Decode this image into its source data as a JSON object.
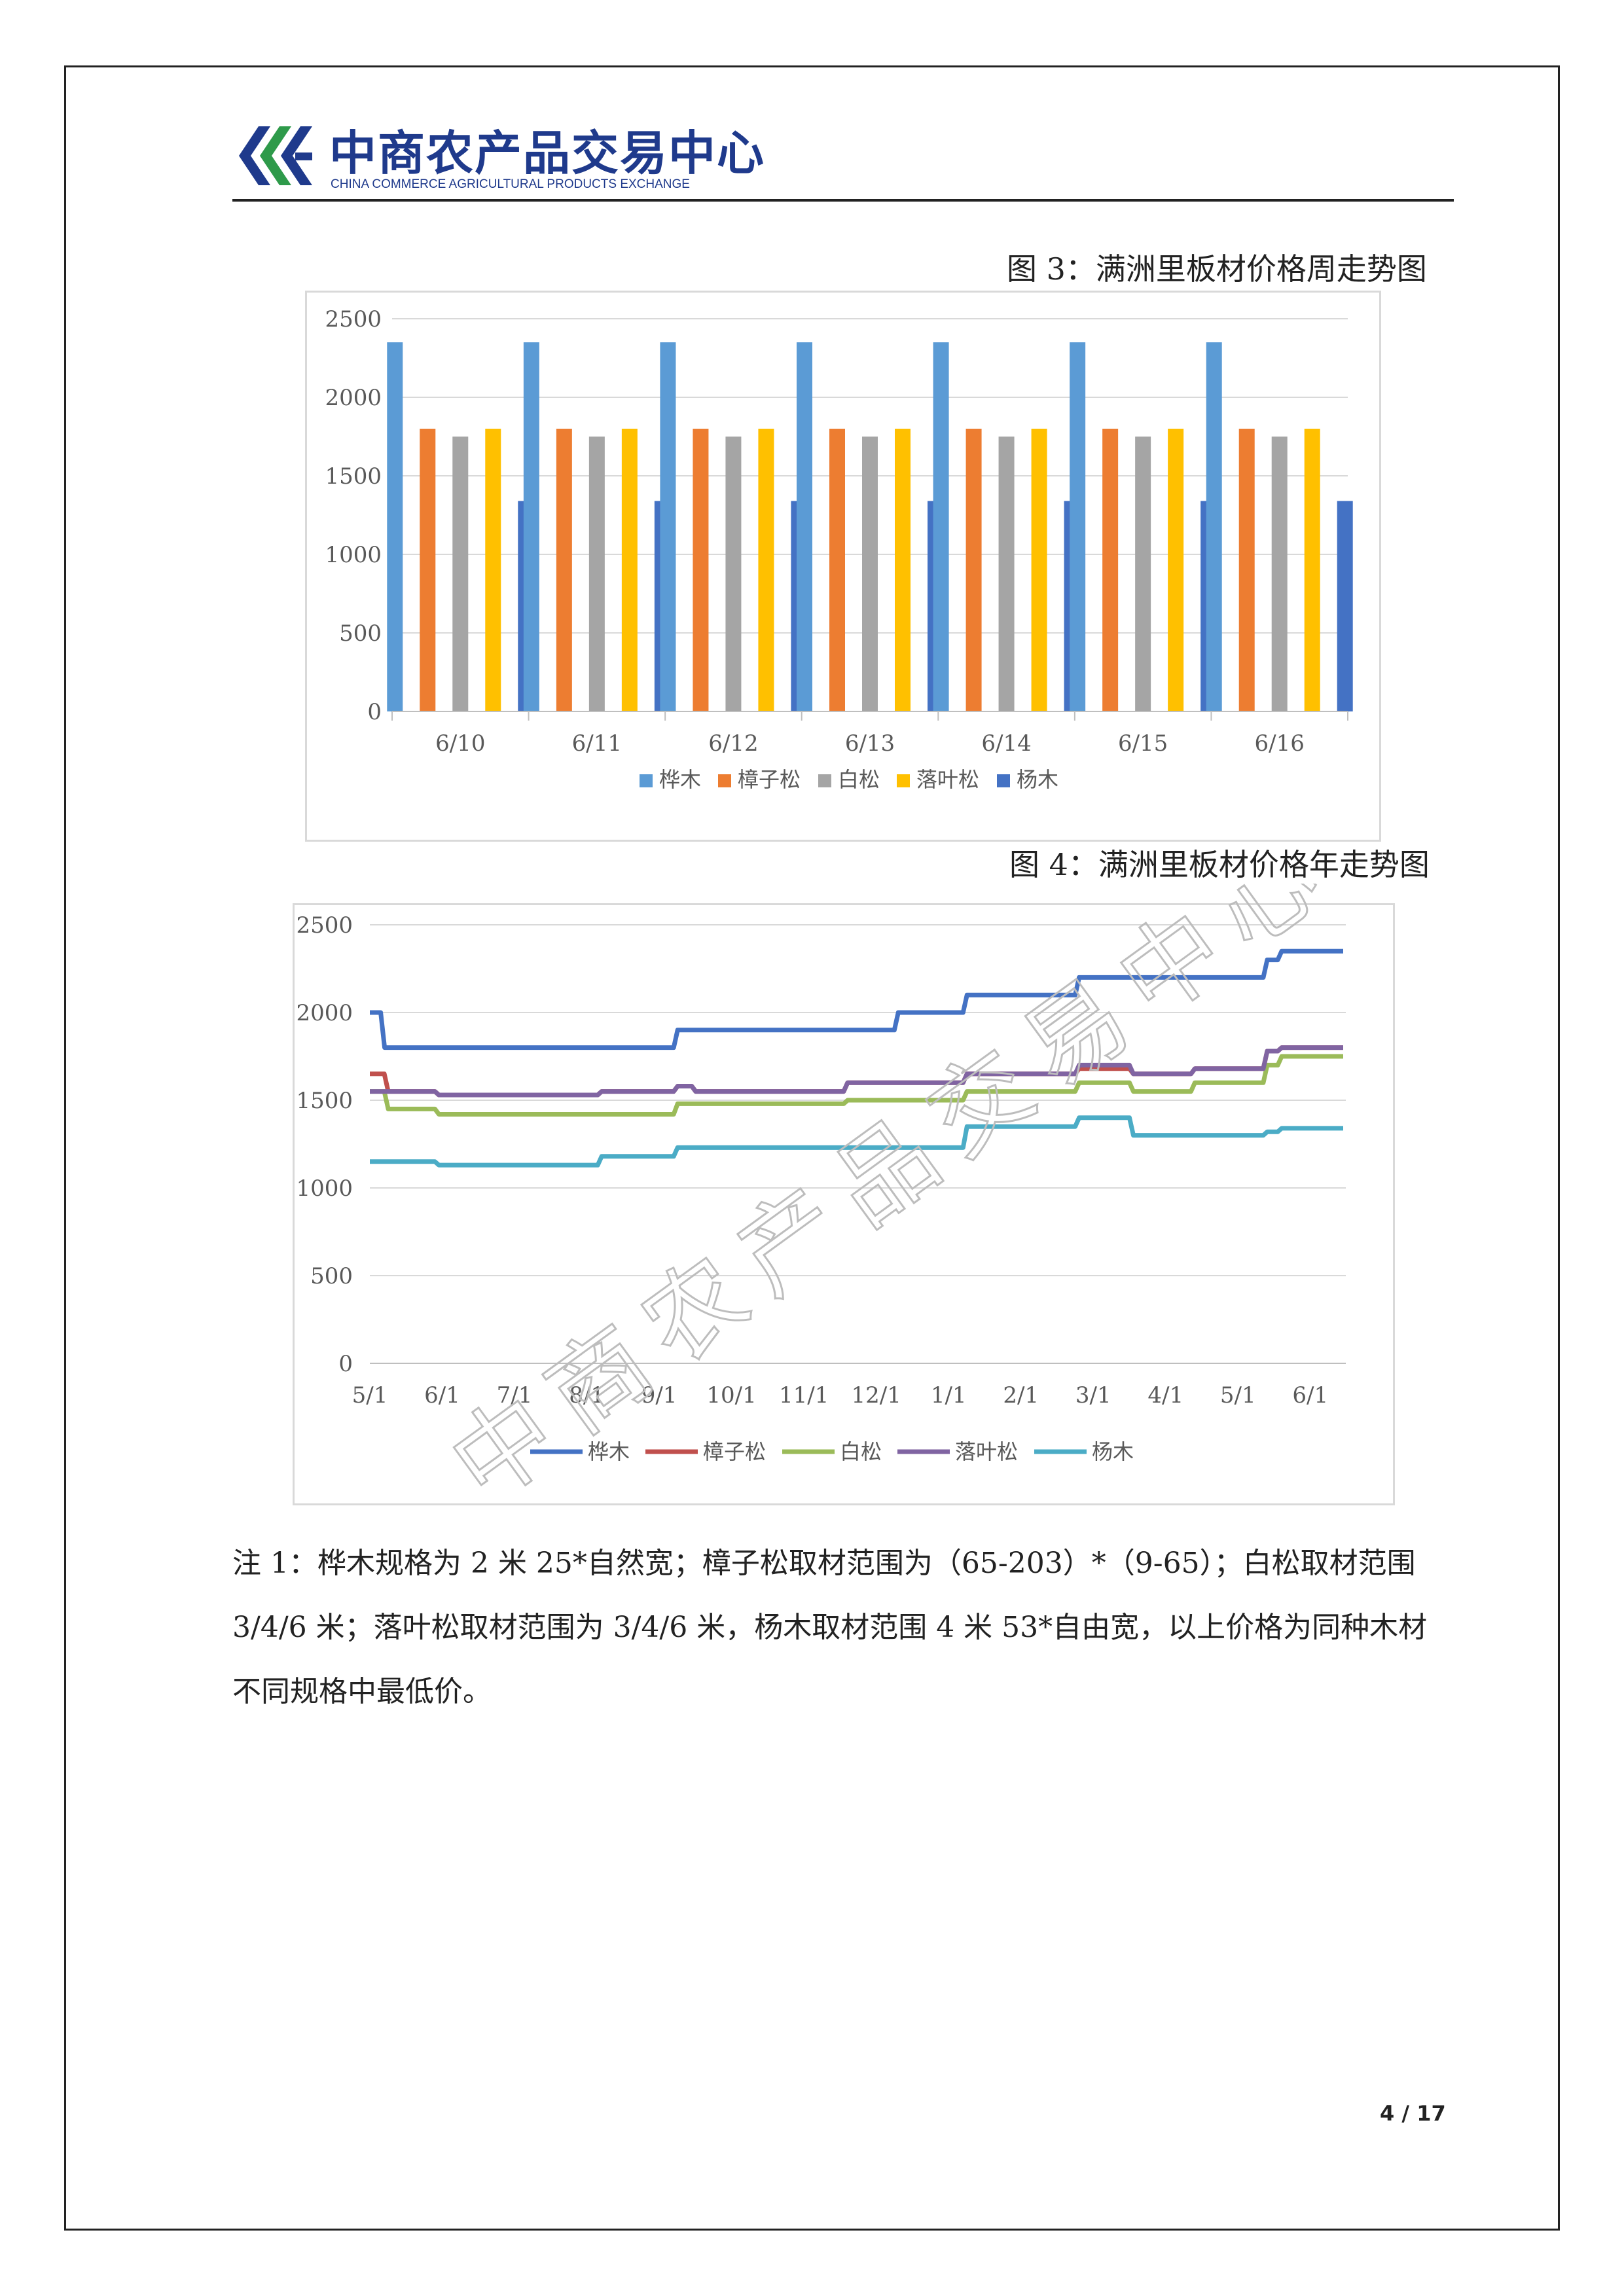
{
  "header": {
    "logo_text": "中商农产品交易中心",
    "logo_subtext": "CHINA COMMERCE AGRICULTURAL PRODUCTS EXCHANGE",
    "logo_icon": "cca-logo-icon",
    "brand_color": "#1f3a8c"
  },
  "figure3": {
    "title": "图 3：满洲里板材价格周走势图",
    "chart_data": {
      "type": "bar",
      "categories": [
        "6/10",
        "6/11",
        "6/12",
        "6/13",
        "6/14",
        "6/15",
        "6/16"
      ],
      "series": [
        {
          "name": "桦木",
          "color": "#5b9bd5",
          "values": [
            2350,
            2350,
            2350,
            2350,
            2350,
            2350,
            2350
          ]
        },
        {
          "name": "樟子松",
          "color": "#ed7d31",
          "values": [
            1800,
            1800,
            1800,
            1800,
            1800,
            1800,
            1800
          ]
        },
        {
          "name": "白松",
          "color": "#a5a5a5",
          "values": [
            1750,
            1750,
            1750,
            1750,
            1750,
            1750,
            1750
          ]
        },
        {
          "name": "落叶松",
          "color": "#ffc000",
          "values": [
            1800,
            1800,
            1800,
            1800,
            1800,
            1800,
            1800
          ]
        },
        {
          "name": "杨木",
          "color": "#4472c4",
          "values": [
            1340,
            1340,
            1340,
            1340,
            1340,
            1340,
            1340
          ]
        }
      ],
      "ylim": [
        0,
        2500
      ],
      "yticks": [
        "0",
        "500",
        "1000",
        "1500",
        "2000",
        "2500"
      ],
      "grid": true,
      "legend": "bottom"
    }
  },
  "figure4": {
    "title": "图 4：满洲里板材价格年走势图",
    "chart_data": {
      "type": "line",
      "xticks": [
        "5/1",
        "6/1",
        "7/1",
        "8/1",
        "9/1",
        "10/1",
        "11/1",
        "12/1",
        "1/1",
        "2/1",
        "3/1",
        "4/1",
        "5/1",
        "6/1"
      ],
      "series": [
        {
          "name": "桦木",
          "color": "#4472c4",
          "points": [
            [
              0,
              2000
            ],
            [
              0.15,
              1800
            ],
            [
              4.2,
              1900
            ],
            [
              7.25,
              2000
            ],
            [
              8.2,
              2100
            ],
            [
              9.75,
              2200
            ],
            [
              12.35,
              2300
            ],
            [
              12.55,
              2350
            ],
            [
              13.4,
              2350
            ]
          ]
        },
        {
          "name": "樟子松",
          "color": "#c0504d",
          "points": [
            [
              0,
              1650
            ],
            [
              0.2,
              1550
            ],
            [
              0.9,
              1530
            ],
            [
              3.15,
              1550
            ],
            [
              4.2,
              1580
            ],
            [
              4.45,
              1550
            ],
            [
              6.55,
              1600
            ],
            [
              8.2,
              1650
            ],
            [
              9.75,
              1680
            ],
            [
              10.5,
              1650
            ],
            [
              11.35,
              1680
            ],
            [
              12.35,
              1780
            ],
            [
              12.55,
              1800
            ],
            [
              13.4,
              1800
            ]
          ]
        },
        {
          "name": "白松",
          "color": "#9bbb59",
          "points": [
            [
              0,
              1550
            ],
            [
              0.2,
              1450
            ],
            [
              0.9,
              1420
            ],
            [
              4.2,
              1480
            ],
            [
              6.55,
              1500
            ],
            [
              8.2,
              1550
            ],
            [
              9.75,
              1600
            ],
            [
              10.5,
              1550
            ],
            [
              11.35,
              1600
            ],
            [
              12.35,
              1700
            ],
            [
              12.55,
              1750
            ],
            [
              13.4,
              1750
            ]
          ]
        },
        {
          "name": "落叶松",
          "color": "#8064a2",
          "points": [
            [
              0,
              1550
            ],
            [
              0.9,
              1530
            ],
            [
              3.15,
              1550
            ],
            [
              4.2,
              1580
            ],
            [
              4.45,
              1550
            ],
            [
              6.55,
              1600
            ],
            [
              8.2,
              1650
            ],
            [
              9.75,
              1700
            ],
            [
              10.5,
              1650
            ],
            [
              11.35,
              1680
            ],
            [
              12.35,
              1780
            ],
            [
              12.55,
              1800
            ],
            [
              13.4,
              1800
            ]
          ]
        },
        {
          "name": "杨木",
          "color": "#4bacc6",
          "points": [
            [
              0,
              1150
            ],
            [
              0.9,
              1130
            ],
            [
              3.15,
              1180
            ],
            [
              4.2,
              1230
            ],
            [
              8.2,
              1350
            ],
            [
              9.75,
              1400
            ],
            [
              10.5,
              1300
            ],
            [
              12.35,
              1320
            ],
            [
              12.55,
              1340
            ],
            [
              13.4,
              1340
            ]
          ]
        }
      ],
      "ylim": [
        0,
        2500
      ],
      "yticks": [
        "0",
        "500",
        "1000",
        "1500",
        "2000",
        "2500"
      ],
      "grid": true,
      "legend": "bottom"
    }
  },
  "note": {
    "line1": "注 1：桦木规格为 2 米 25*自然宽；樟子松取材范围为（65-203）*（9-65）；白松取材范围",
    "line2": "3/4/6 米；落叶松取材范围为 3/4/6 米，杨木取材范围 4 米 53*自由宽，以上价格为同种木材",
    "line3": "不同规格中最低价。"
  },
  "watermark": "中商农产品交易中心",
  "page_number": "4 / 17"
}
